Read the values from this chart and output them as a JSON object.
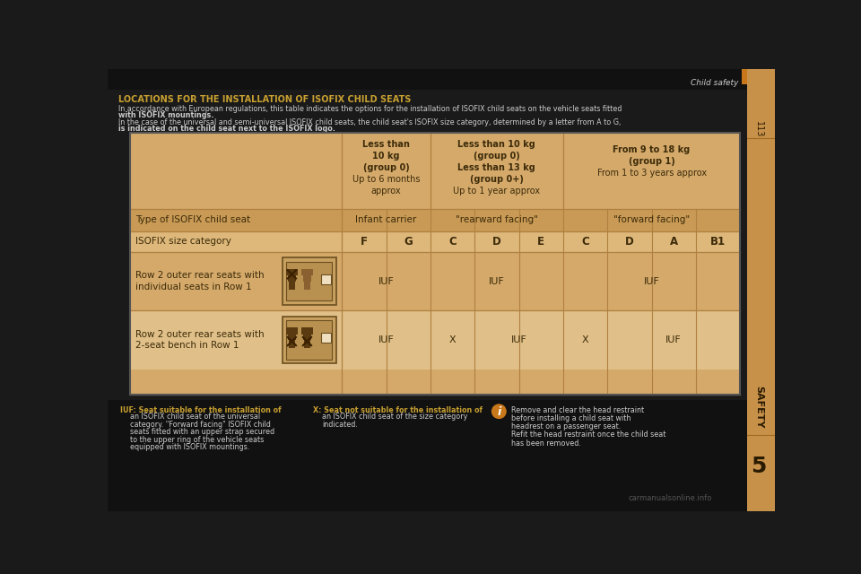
{
  "page_bg": "#1a1a1a",
  "sidebar_color": "#c8914a",
  "sidebar_accent": "#c8781a",
  "table_bg": "#d4a96a",
  "table_light_bg": "#ddb87a",
  "table_alt_bg": "#c89a55",
  "table_border": "#b08040",
  "text_dark": "#3d2b0a",
  "text_light": "#cccccc",
  "text_white": "#ffffff",
  "orange_color": "#c8781a",
  "title_color": "#c8a030",
  "header_title": "LOCATIONS FOR THE INSTALLATION OF ISOFIX CHILD SEATS",
  "subtitle1": "In accordance with European regulations, this table indicates the options for the installation of ISOFIX child seats on the vehicle seats fitted",
  "subtitle1b": "with ISOFIX mountings.",
  "subtitle2": "In the case of the universal and semi-universal ISOFIX child seats, the child seat's ISOFIX size category, determined by a letter from A to G,",
  "subtitle2b": "is indicated on the child seat next to the ISOFIX logo.",
  "col_header1_lines": [
    "Less than",
    "10 kg",
    "(group 0)",
    "Up to 6 months",
    "approx"
  ],
  "col_header2_lines": [
    "Less than 10 kg",
    "(group 0)",
    "Less than 13 kg",
    "(group 0+)",
    "Up to 1 year approx"
  ],
  "col_header3_lines": [
    "From 9 to 18 kg",
    "(group 1)",
    "From 1 to 3 years approx"
  ],
  "row1_label": "Type of ISOFIX child seat",
  "row1_c1": "Infant carrier",
  "row1_c2": "\"rearward facing\"",
  "row1_c3": "\"forward facing\"",
  "row2_label": "ISOFIX size category",
  "row2_cols": [
    "F",
    "G",
    "C",
    "D",
    "E",
    "C",
    "D",
    "A",
    "B1"
  ],
  "row3_label1": "Row 2 outer rear seats with",
  "row3_label2": "individual seats in Row 1",
  "row4_label1": "Row 2 outer rear seats with",
  "row4_label2": "2-seat bench in Row 1",
  "footer1_bold": "IUF: Seat suitable for the installation of",
  "footer1_lines": [
    "an ISOFIX child seat of the universal",
    "category. \"Forward facing\" ISOFIX child",
    "seats fitted with an upper strap secured",
    "to the upper ring of the vehicle seats",
    "equipped with ISOFIX mountings."
  ],
  "footer2_bold": "X: Seat not suitable for the installation of",
  "footer2_lines": [
    "an ISOFIX child seat of the size category",
    "indicated."
  ],
  "footer3_lines": [
    "Remove and clear the head restraint",
    "before installing a child seat with",
    "headrest on a passenger seat.",
    "Refit the head restraint once the child seat",
    "has been removed."
  ],
  "page_num": "113",
  "chapter": "SAFETY",
  "chapter_num": "5",
  "top_right_text": "Child safety"
}
